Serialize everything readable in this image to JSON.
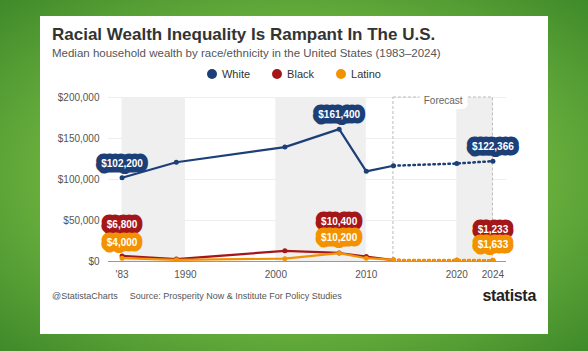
{
  "chart_data": {
    "type": "line",
    "title": "Racial Wealth Inequality Is Rampant In The U.S.",
    "subtitle": "Median household wealth by race/ethnicity in the United States (1983–2024)",
    "x": [
      1983,
      1989,
      2001,
      2007,
      2010,
      2013,
      2020,
      2024
    ],
    "series": [
      {
        "name": "White",
        "color": "#1c3f77",
        "marker": "circle",
        "values": [
          102200,
          121000,
          139500,
          161400,
          110000,
          116800,
          119500,
          122366
        ],
        "value_labels": [
          "$102,200",
          null,
          null,
          "$161,400",
          null,
          null,
          null,
          "$122,366"
        ]
      },
      {
        "name": "Black",
        "color": "#a3171b",
        "marker": "circle",
        "values": [
          6800,
          3000,
          13000,
          10400,
          6000,
          1700,
          1500,
          1233
        ],
        "value_labels": [
          "$6,800",
          null,
          null,
          "$10,400",
          null,
          null,
          null,
          "$1,233"
        ]
      },
      {
        "name": "Latino",
        "color": "#f39200",
        "marker": "circle",
        "values": [
          4000,
          2000,
          3500,
          10200,
          4000,
          2000,
          1800,
          1633
        ],
        "value_labels": [
          "$4,000",
          null,
          null,
          "$10,200",
          null,
          null,
          null,
          "$1,633"
        ]
      }
    ],
    "forecast": {
      "label": "Forecast",
      "from": 2013,
      "to": 2024
    },
    "xlim": [
      1981.5,
      2025.5
    ],
    "xticks": [
      {
        "value": 1983,
        "label": "'83"
      },
      1990,
      2000,
      2010,
      2020,
      2024
    ],
    "ylim": [
      0,
      200000
    ],
    "yticks": [
      {
        "value": 0,
        "label": "$0"
      },
      {
        "value": 50000,
        "label": "$50,000"
      },
      {
        "value": 100000,
        "label": "$100,000"
      },
      {
        "value": 150000,
        "label": "$150,000"
      },
      {
        "value": 200000,
        "label": "$200,000"
      }
    ],
    "grid": true,
    "legend": "top",
    "data_labels": true,
    "source": "Source: Prosperity Now & Institute For Policy Studies",
    "credit": "@StatistaCharts",
    "brand": "statista"
  }
}
